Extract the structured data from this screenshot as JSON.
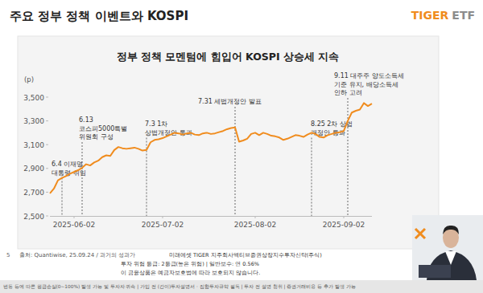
{
  "slide": {
    "title": "주요 정부 정책 이벤트와 KOSPI",
    "logo": {
      "brand": "TIGER",
      "suffix": "ETF"
    },
    "page": "5",
    "source": "출처: Quantiwise, 25.09.24 / 과거의 성과가",
    "overlay": [
      "미래에셋 TIGER 지주회사액티브증권상장지수투자신탁(주식)",
      "투자 위험 등급: 2등급(높은 위험)  |  일반보수: 연 0.56%",
      "이 금융상품은 예금자보호법에 따라 보호되지 않습니다."
    ],
    "disclaimer": "변동 등에 따른 원금손실(0~100%) 발생 가능 및 투자자 귀속  |  가입 전 (간이)투자설명서 · 집합투자규약 필독  |  투자 전 설명 청취  |  증권거래비용 등 추가 발생 가능"
  },
  "chart_data": {
    "type": "line",
    "title": "정부 정책 모멘텀에 힘입어 KOSPI 상승세 지속",
    "y_label": "(p)",
    "color": "#f08c1e",
    "grid": false,
    "categories": [
      null,
      null,
      null,
      null,
      null,
      null,
      "2025-06-02",
      null,
      null,
      null,
      null,
      null,
      null,
      null,
      null,
      null,
      null,
      null,
      null,
      null,
      null,
      null,
      null,
      null,
      null,
      null,
      null,
      null,
      "2025-07-02",
      null,
      null,
      null,
      null,
      null,
      null,
      null,
      null,
      null,
      null,
      null,
      null,
      null,
      null,
      null,
      null,
      null,
      null,
      null,
      null,
      null,
      null,
      "2025-08-02",
      null,
      null,
      null,
      null,
      null,
      null,
      null,
      null,
      null,
      null,
      null,
      null,
      null,
      null,
      null,
      null,
      null,
      null,
      null,
      null,
      null,
      "2025-09-02",
      null,
      null,
      null,
      null,
      null,
      null,
      null
    ],
    "values": [
      2690,
      2730,
      2800,
      2820,
      2835,
      2855,
      2870,
      2885,
      2905,
      2935,
      2925,
      2950,
      2965,
      2995,
      3010,
      3005,
      3055,
      3080,
      3070,
      3065,
      3070,
      3075,
      3065,
      3050,
      3055,
      3120,
      3140,
      3145,
      3155,
      3170,
      3185,
      3200,
      3195,
      3185,
      3195,
      3200,
      3185,
      3180,
      3195,
      3200,
      3190,
      3195,
      3205,
      3215,
      3230,
      3240,
      3245,
      3125,
      3135,
      3150,
      3190,
      3200,
      3180,
      3200,
      3190,
      3175,
      3170,
      3160,
      3140,
      3150,
      3165,
      3180,
      3175,
      3165,
      3185,
      3200,
      3190,
      3165,
      3160,
      3180,
      3190,
      3200,
      3205,
      3215,
      3300,
      3370,
      3385,
      3395,
      3450,
      3425,
      3445
    ],
    "ylim": [
      2500,
      3500
    ],
    "yticks": [
      {
        "value": 2500,
        "label": "2,500"
      },
      {
        "value": 2700,
        "label": "2,700"
      },
      {
        "value": 2900,
        "label": "2,900"
      },
      {
        "value": 3100,
        "label": "3,100"
      },
      {
        "value": 3300,
        "label": "3,300"
      },
      {
        "value": 3500,
        "label": "3,500"
      }
    ],
    "annotations": [
      [
        "6.4 이재명",
        "대통령 취임"
      ],
      [
        "6.13",
        "코스피5000특별",
        "위원회 구성"
      ],
      [
        "7.3 1차",
        "상법개정안 통과"
      ],
      [
        "7.31 세법개정안 발표"
      ],
      [
        "8.25 2차 상법",
        "개정안 통과"
      ],
      [
        "9.11 대주주 양도소득세",
        "기준 유지, 배당소득세",
        "인하 고려"
      ]
    ]
  }
}
